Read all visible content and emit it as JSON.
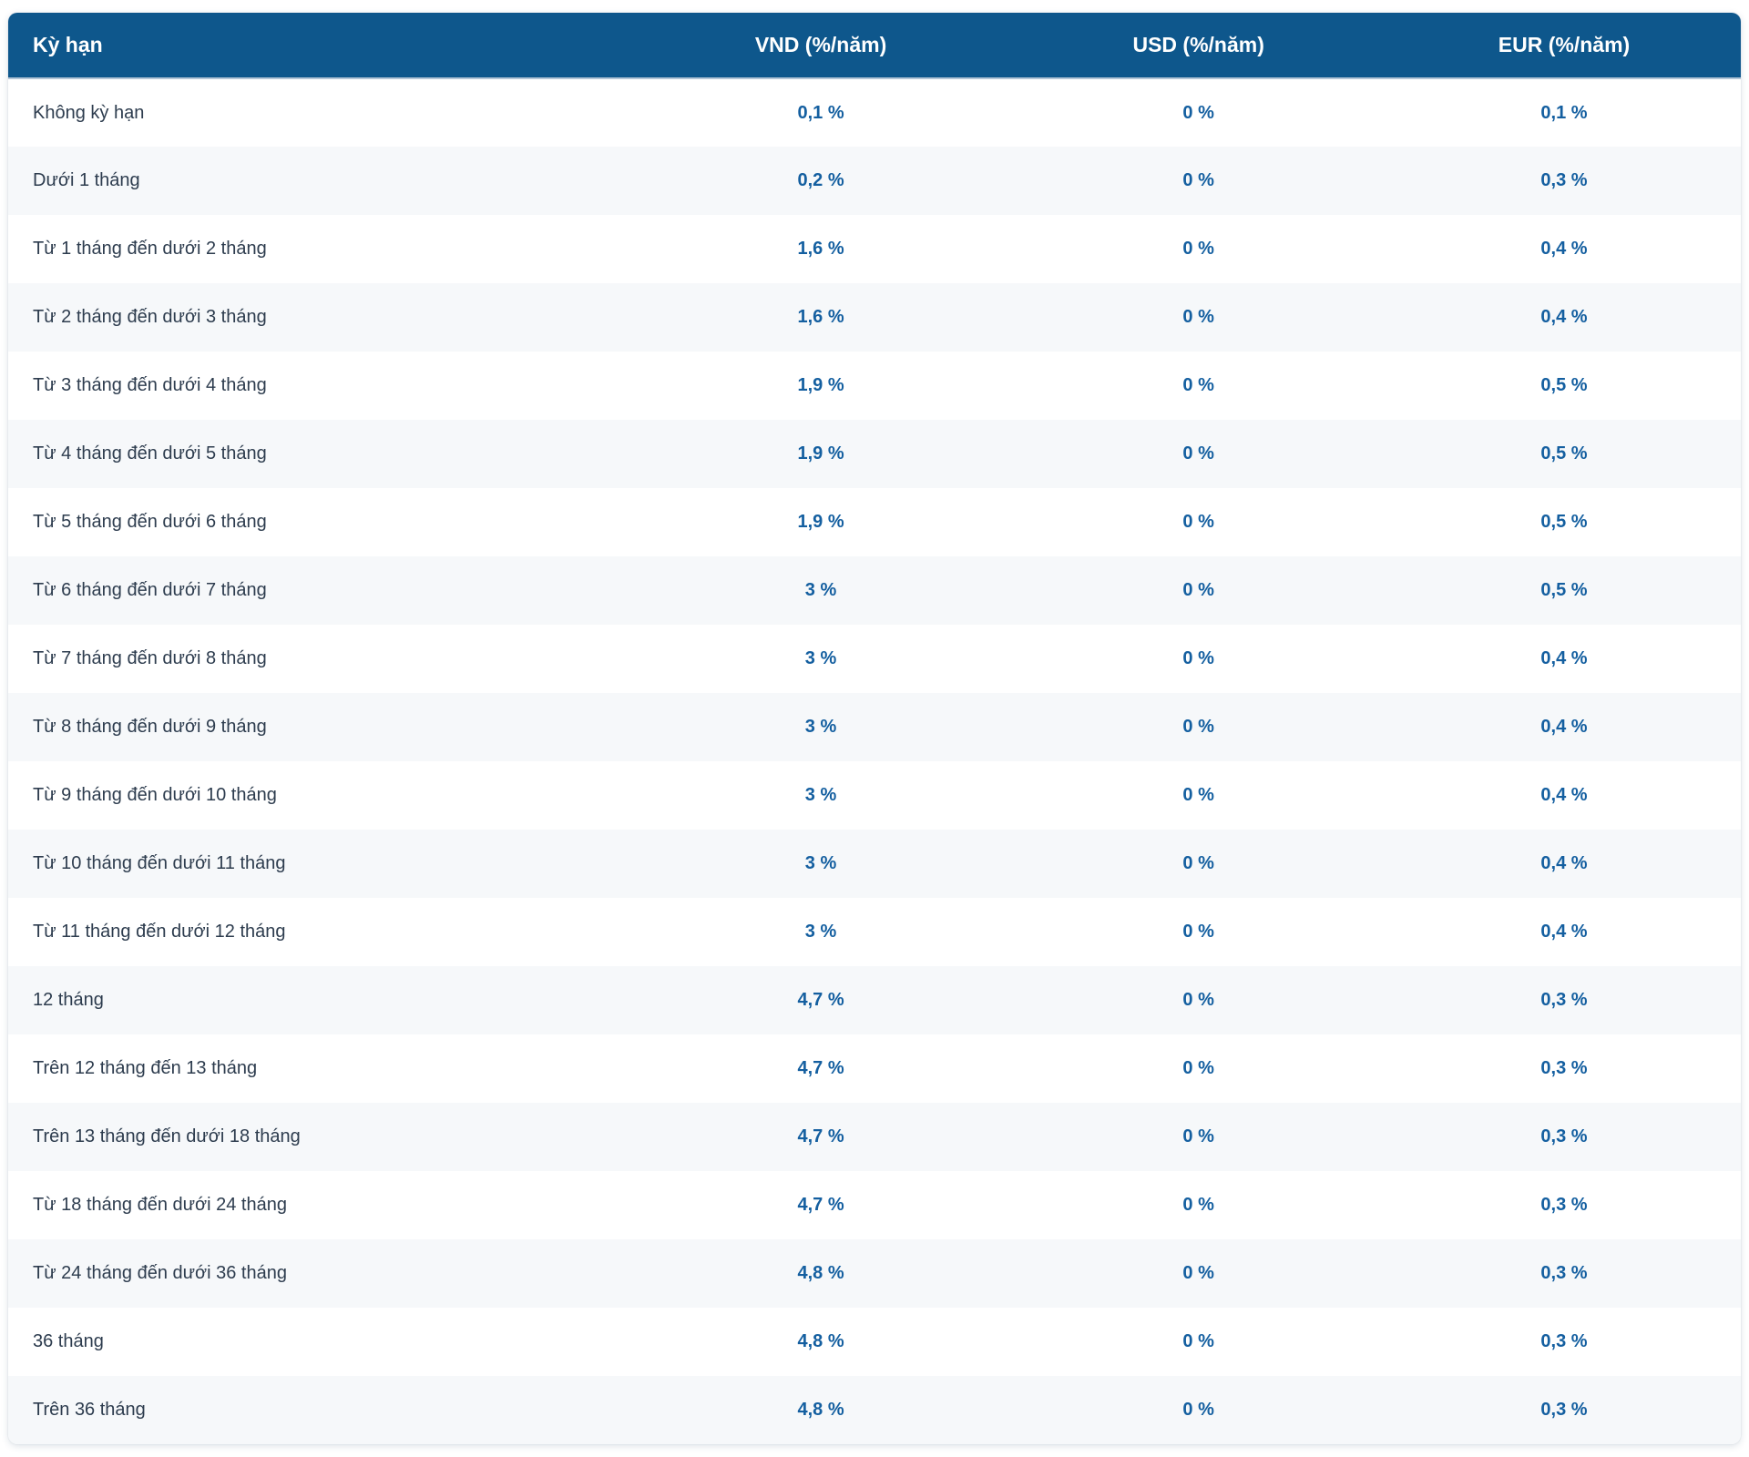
{
  "table": {
    "columns": [
      {
        "key": "term",
        "label": "Kỳ hạn"
      },
      {
        "key": "vnd",
        "label": "VND (%/năm)"
      },
      {
        "key": "usd",
        "label": "USD (%/năm)"
      },
      {
        "key": "eur",
        "label": "EUR (%/năm)"
      }
    ],
    "rows": [
      {
        "term": "Không kỳ hạn",
        "vnd": "0,1 %",
        "usd": "0 %",
        "eur": "0,1 %"
      },
      {
        "term": "Dưới 1 tháng",
        "vnd": "0,2 %",
        "usd": "0 %",
        "eur": "0,3 %"
      },
      {
        "term": "Từ 1 tháng đến dưới 2 tháng",
        "vnd": "1,6 %",
        "usd": "0 %",
        "eur": "0,4 %"
      },
      {
        "term": "Từ 2 tháng đến dưới 3 tháng",
        "vnd": "1,6 %",
        "usd": "0 %",
        "eur": "0,4 %"
      },
      {
        "term": "Từ 3 tháng đến dưới 4 tháng",
        "vnd": "1,9 %",
        "usd": "0 %",
        "eur": "0,5 %"
      },
      {
        "term": "Từ 4 tháng đến dưới 5 tháng",
        "vnd": "1,9 %",
        "usd": "0 %",
        "eur": "0,5 %"
      },
      {
        "term": "Từ 5 tháng đến dưới 6 tháng",
        "vnd": "1,9 %",
        "usd": "0 %",
        "eur": "0,5 %"
      },
      {
        "term": "Từ 6 tháng đến dưới 7 tháng",
        "vnd": "3 %",
        "usd": "0 %",
        "eur": "0,5 %"
      },
      {
        "term": "Từ 7 tháng đến dưới 8 tháng",
        "vnd": "3 %",
        "usd": "0 %",
        "eur": "0,4 %"
      },
      {
        "term": "Từ 8 tháng đến dưới 9 tháng",
        "vnd": "3 %",
        "usd": "0 %",
        "eur": "0,4 %"
      },
      {
        "term": "Từ 9 tháng đến dưới 10 tháng",
        "vnd": "3 %",
        "usd": "0 %",
        "eur": "0,4 %"
      },
      {
        "term": "Từ 10 tháng đến dưới 11 tháng",
        "vnd": "3 %",
        "usd": "0 %",
        "eur": "0,4 %"
      },
      {
        "term": "Từ 11 tháng đến dưới 12 tháng",
        "vnd": "3 %",
        "usd": "0 %",
        "eur": "0,4 %"
      },
      {
        "term": "12 tháng",
        "vnd": "4,7 %",
        "usd": "0 %",
        "eur": "0,3 %"
      },
      {
        "term": "Trên 12 tháng đến 13 tháng",
        "vnd": "4,7 %",
        "usd": "0 %",
        "eur": "0,3 %"
      },
      {
        "term": "Trên 13 tháng đến dưới 18 tháng",
        "vnd": "4,7 %",
        "usd": "0 %",
        "eur": "0,3 %"
      },
      {
        "term": "Từ 18 tháng đến dưới 24 tháng",
        "vnd": "4,7 %",
        "usd": "0 %",
        "eur": "0,3 %"
      },
      {
        "term": "Từ 24 tháng đến dưới 36 tháng",
        "vnd": "4,8 %",
        "usd": "0 %",
        "eur": "0,3 %"
      },
      {
        "term": "36 tháng",
        "vnd": "4,8 %",
        "usd": "0 %",
        "eur": "0,3 %"
      },
      {
        "term": "Trên 36 tháng",
        "vnd": "4,8 %",
        "usd": "0 %",
        "eur": "0,3 %"
      }
    ]
  },
  "colors": {
    "header_bg": "#0e578c",
    "header_text": "#ffffff",
    "value_color": "#145fa0",
    "label_color": "#2d3c4e",
    "stripe_bg": "#f6f8fa",
    "row_bg": "#ffffff",
    "header_divider": "#b3c5d7",
    "page_bg": "#ffffff"
  }
}
